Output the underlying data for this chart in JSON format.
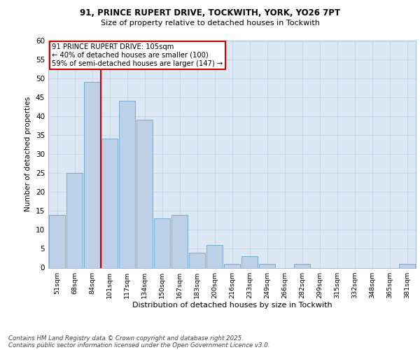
{
  "title_line1": "91, PRINCE RUPERT DRIVE, TOCKWITH, YORK, YO26 7PT",
  "title_line2": "Size of property relative to detached houses in Tockwith",
  "xlabel": "Distribution of detached houses by size in Tockwith",
  "ylabel": "Number of detached properties",
  "categories": [
    "51sqm",
    "68sqm",
    "84sqm",
    "101sqm",
    "117sqm",
    "134sqm",
    "150sqm",
    "167sqm",
    "183sqm",
    "200sqm",
    "216sqm",
    "233sqm",
    "249sqm",
    "266sqm",
    "282sqm",
    "299sqm",
    "315sqm",
    "332sqm",
    "348sqm",
    "365sqm",
    "381sqm"
  ],
  "values": [
    14,
    25,
    49,
    34,
    44,
    39,
    13,
    14,
    4,
    6,
    1,
    3,
    1,
    0,
    1,
    0,
    0,
    0,
    0,
    0,
    1
  ],
  "bar_color": "#bdd0e8",
  "bar_edgecolor": "#7aaad0",
  "grid_color": "#c8d8ec",
  "bg_color": "#dce8f4",
  "annotation_box_text": "91 PRINCE RUPERT DRIVE: 105sqm\n← 40% of detached houses are smaller (100)\n59% of semi-detached houses are larger (147) →",
  "annotation_box_color": "#cc0000",
  "vertical_line_x": 2.5,
  "vertical_line_color": "#cc0000",
  "ylim": [
    0,
    60
  ],
  "yticks": [
    0,
    5,
    10,
    15,
    20,
    25,
    30,
    35,
    40,
    45,
    50,
    55,
    60
  ],
  "footer_line1": "Contains HM Land Registry data © Crown copyright and database right 2025.",
  "footer_line2": "Contains public sector information licensed under the Open Government Licence v3.0."
}
